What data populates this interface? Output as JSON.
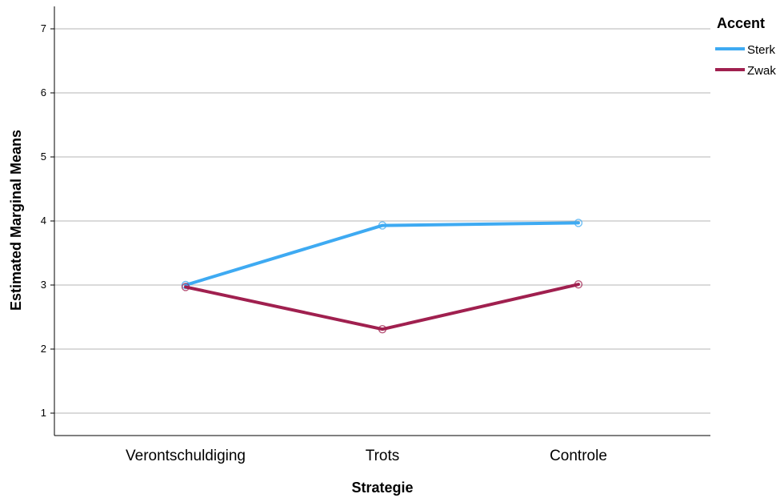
{
  "chart_data": {
    "type": "line",
    "title": "",
    "xlabel": "Strategie",
    "ylabel": "Estimated Marginal Means",
    "categories": [
      "Verontschuldiging",
      "Trots",
      "Controle"
    ],
    "yticks": [
      "1",
      "2",
      "3",
      "4",
      "5",
      "6",
      "7"
    ],
    "ylim": [
      0.65,
      7.35
    ],
    "grid": true,
    "legend": {
      "title": "Accent",
      "position": "top-right"
    },
    "series": [
      {
        "name": "Sterk",
        "color": "#3eaaf2",
        "values": [
          3.0,
          3.93,
          3.97
        ]
      },
      {
        "name": "Zwak",
        "color": "#a0204f",
        "values": [
          2.97,
          2.31,
          3.01
        ]
      }
    ]
  }
}
